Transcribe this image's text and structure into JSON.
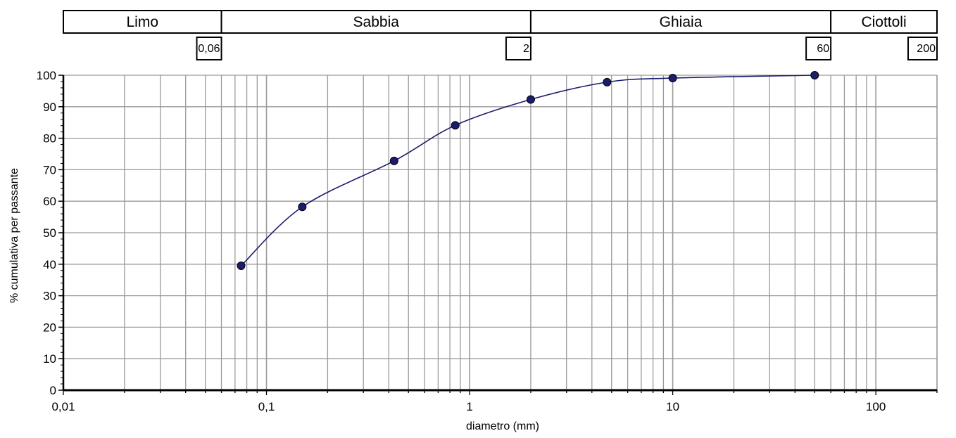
{
  "classification": {
    "bands": [
      {
        "label": "Limo",
        "from": 0.01,
        "to": 0.06
      },
      {
        "label": "Sabbia",
        "from": 0.06,
        "to": 2
      },
      {
        "label": "Ghiaia",
        "from": 2,
        "to": 60
      },
      {
        "label": "Ciottoli",
        "from": 60,
        "to": 200
      }
    ],
    "boundaries": [
      {
        "label": "0,06",
        "value": 0.06
      },
      {
        "label": "2",
        "value": 2
      },
      {
        "label": "60",
        "value": 60
      },
      {
        "label": "200",
        "value": 200
      }
    ]
  },
  "chart_data": {
    "type": "line",
    "title": "",
    "xlabel": "diametro (mm)",
    "ylabel": "% cumulativa per passante",
    "xscale": "log",
    "xlim": [
      0.01,
      200
    ],
    "ylim": [
      0,
      100
    ],
    "x_ticks": [
      0.01,
      0.1,
      1,
      10,
      100
    ],
    "x_tick_labels": [
      "0,01",
      "0,1",
      "1",
      "10",
      "100"
    ],
    "y_ticks": [
      0,
      10,
      20,
      30,
      40,
      50,
      60,
      70,
      80,
      90,
      100
    ],
    "y_tick_labels": [
      "0",
      "10",
      "20",
      "30",
      "40",
      "50",
      "60",
      "70",
      "80",
      "90",
      "100"
    ],
    "grid": true,
    "series": [
      {
        "x": [
          0.075,
          0.15,
          0.425,
          0.85,
          2,
          4.75,
          10,
          50
        ],
        "y": [
          39.5,
          58.2,
          72.8,
          84.1,
          92.3,
          97.8,
          99.1,
          100
        ]
      }
    ]
  },
  "colors": {
    "series": "#1c1c6e",
    "grid": "#9a9a9a",
    "axis": "#000000"
  }
}
